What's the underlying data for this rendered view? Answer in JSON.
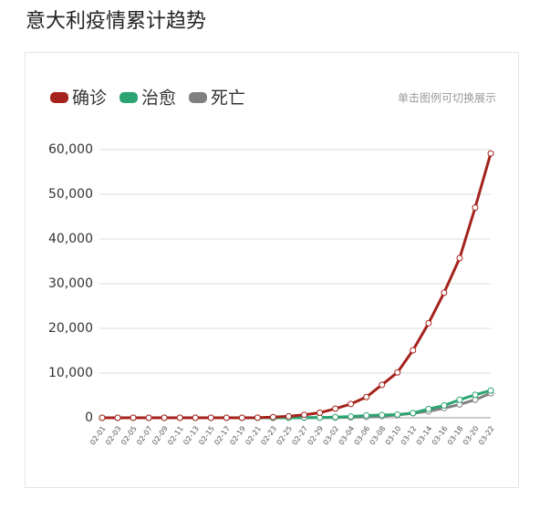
{
  "chart_data": {
    "type": "line",
    "title": "意大利疫情累计趋势",
    "note": "单击图例可切换展示",
    "categories": [
      "02-01",
      "02-03",
      "02-05",
      "02-07",
      "02-09",
      "02-11",
      "02-13",
      "02-15",
      "02-17",
      "02-19",
      "02-21",
      "02-23",
      "02-25",
      "02-27",
      "02-29",
      "03-02",
      "03-04",
      "03-06",
      "03-08",
      "03-10",
      "03-12",
      "03-14",
      "03-16",
      "03-18",
      "03-20",
      "03-22"
    ],
    "series": [
      {
        "name": "确诊",
        "color": "#a4231c",
        "values": [
          2,
          2,
          2,
          3,
          3,
          3,
          3,
          3,
          3,
          3,
          20,
          155,
          322,
          655,
          1128,
          2036,
          3089,
          4636,
          7375,
          10149,
          15113,
          21157,
          27980,
          35713,
          47021,
          59138
        ]
      },
      {
        "name": "治愈",
        "color": "#2ba471",
        "values": [
          0,
          0,
          0,
          0,
          0,
          0,
          0,
          0,
          0,
          0,
          0,
          0,
          1,
          45,
          46,
          149,
          276,
          523,
          622,
          724,
          1045,
          1966,
          2749,
          4025,
          5129,
          6100
        ]
      },
      {
        "name": "死亡",
        "color": "#808080",
        "values": [
          0,
          0,
          0,
          0,
          0,
          0,
          0,
          0,
          0,
          0,
          1,
          3,
          11,
          17,
          29,
          52,
          107,
          197,
          366,
          631,
          1016,
          1441,
          2158,
          2978,
          4032,
          5476
        ]
      }
    ],
    "ylim": [
      0,
      60000
    ],
    "yticks": [
      0,
      {
        "value": 10000,
        "label": "10,000"
      },
      {
        "value": 20000,
        "label": "20,000"
      },
      {
        "value": 30000,
        "label": "30,000"
      },
      {
        "value": 40000,
        "label": "40,000"
      },
      {
        "value": 50000,
        "label": "50,000"
      },
      {
        "value": 60000,
        "label": "60,000"
      }
    ],
    "grid": true
  }
}
